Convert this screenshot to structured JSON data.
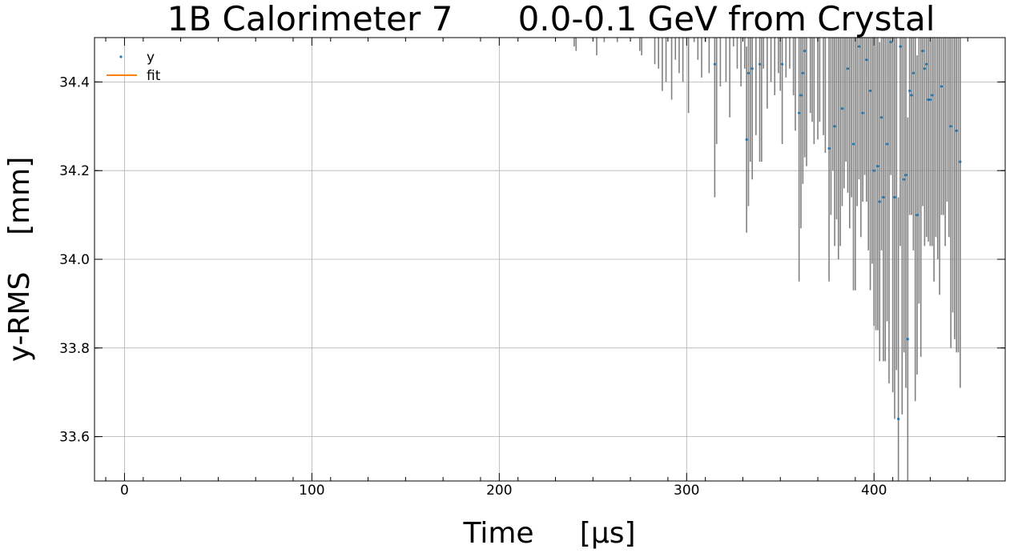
{
  "chart_data": {
    "type": "scatter",
    "title_left": "1B Calorimeter 7",
    "title_right": "0.0-0.1 GeV from Crystal",
    "xlabel": "Time     [μs]",
    "ylabel": "y-RMS    [mm]",
    "xlim": [
      -16,
      470
    ],
    "ylim": [
      33.5,
      34.5
    ],
    "xticks": [
      0,
      100,
      200,
      300,
      400
    ],
    "yticks": [
      33.6,
      33.8,
      34.0,
      34.2,
      34.4
    ],
    "grid": true,
    "legend_position": "top-left",
    "legend": [
      "y",
      "fit"
    ],
    "colors": {
      "points": "#1f77b4",
      "fit": "#ff7f0e",
      "errorbars": "#808080",
      "grid": "#b0b0b0"
    },
    "series": [
      {
        "name": "y",
        "points": [
          [
            315,
            34.44,
            0.3
          ],
          [
            332,
            34.27,
            0.21
          ],
          [
            333,
            34.42,
            0.3
          ],
          [
            335,
            34.43,
            0.25
          ],
          [
            339,
            34.44,
            0.22
          ],
          [
            351,
            34.44,
            0.18
          ],
          [
            360,
            34.33,
            0.38
          ],
          [
            361,
            34.37,
            0.3
          ],
          [
            362,
            34.42,
            0.25
          ],
          [
            363,
            34.47,
            0.24
          ],
          [
            376,
            34.25,
            0.3
          ],
          [
            379,
            34.3,
            0.27
          ],
          [
            383,
            34.34,
            0.22
          ],
          [
            386,
            34.43,
            0.28
          ],
          [
            389,
            34.26,
            0.33
          ],
          [
            392,
            34.48,
            0.3
          ],
          [
            394,
            34.33,
            0.2
          ],
          [
            396,
            34.45,
            0.32
          ],
          [
            398,
            34.38,
            0.45
          ],
          [
            400,
            34.2,
            0.35
          ],
          [
            402,
            34.21,
            0.37
          ],
          [
            403,
            34.13,
            0.36
          ],
          [
            404,
            34.32,
            0.3
          ],
          [
            405,
            34.14,
            0.37
          ],
          [
            407,
            34.26,
            0.4
          ],
          [
            409,
            34.49,
            0.3
          ],
          [
            411,
            34.14,
            0.5
          ],
          [
            413,
            33.64,
            0.5
          ],
          [
            414,
            34.48,
            0.45
          ],
          [
            416,
            34.18,
            0.39
          ],
          [
            417,
            34.19,
            0.48
          ],
          [
            418,
            33.82,
            0.5
          ],
          [
            419,
            34.38,
            0.28
          ],
          [
            420,
            34.37,
            0.27
          ],
          [
            421,
            34.42,
            0.4
          ],
          [
            423,
            34.1,
            0.36
          ],
          [
            426,
            34.47,
            0.35
          ],
          [
            427,
            34.43,
            0.4
          ],
          [
            428,
            34.44,
            0.39
          ],
          [
            429,
            34.36,
            0.32
          ],
          [
            430,
            34.36,
            0.33
          ],
          [
            431,
            34.37,
            0.34
          ],
          [
            436,
            34.39,
            0.29
          ],
          [
            441,
            34.3,
            0.5
          ],
          [
            444,
            34.29,
            0.5
          ],
          [
            446,
            34.22,
            0.51
          ]
        ],
        "bars_above_axis": [
          [
            240,
            34.48
          ],
          [
            241,
            34.47
          ],
          [
            252,
            34.46
          ],
          [
            256,
            34.49
          ],
          [
            263,
            34.49
          ],
          [
            275,
            34.47
          ],
          [
            276,
            34.46
          ],
          [
            283,
            34.44
          ],
          [
            285,
            34.43
          ],
          [
            287,
            34.38
          ],
          [
            289,
            34.4
          ],
          [
            292,
            34.36
          ],
          [
            294,
            34.45
          ],
          [
            296,
            34.42
          ],
          [
            298,
            34.4
          ],
          [
            301,
            34.33
          ],
          [
            304,
            34.49
          ],
          [
            306,
            34.45
          ],
          [
            308,
            34.41
          ],
          [
            310,
            34.49
          ],
          [
            312,
            34.42
          ],
          [
            316,
            34.26
          ],
          [
            318,
            34.39
          ],
          [
            321,
            34.4
          ],
          [
            323,
            34.32
          ],
          [
            325,
            34.48
          ],
          [
            327,
            34.43
          ],
          [
            329,
            34.39
          ],
          [
            331,
            34.43
          ],
          [
            334,
            34.22
          ],
          [
            337,
            34.28
          ],
          [
            340,
            34.22
          ],
          [
            341,
            34.43
          ],
          [
            343,
            34.34
          ],
          [
            345,
            34.4
          ],
          [
            347,
            34.37
          ],
          [
            349,
            34.42
          ],
          [
            350,
            34.38
          ],
          [
            353,
            34.41
          ],
          [
            355,
            34.43
          ],
          [
            357,
            34.37
          ],
          [
            358,
            34.29
          ],
          [
            364,
            34.21
          ],
          [
            366,
            34.33
          ],
          [
            367,
            34.31
          ],
          [
            368,
            34.26
          ],
          [
            370,
            34.27
          ],
          [
            371,
            34.31
          ],
          [
            373,
            34.28
          ],
          [
            374,
            34.24
          ],
          [
            377,
            34.1
          ],
          [
            378,
            34.2
          ],
          [
            380,
            34.09
          ],
          [
            381,
            34.0
          ],
          [
            382,
            34.03
          ],
          [
            384,
            34.16
          ],
          [
            385,
            34.22
          ],
          [
            387,
            34.07
          ],
          [
            388,
            34.14
          ],
          [
            390,
            33.93
          ],
          [
            391,
            34.12
          ],
          [
            393,
            34.05
          ],
          [
            395,
            34.19
          ],
          [
            397,
            34.02
          ],
          [
            399,
            33.99
          ],
          [
            401,
            33.84
          ],
          [
            406,
            33.77
          ],
          [
            408,
            33.72
          ],
          [
            410,
            33.7
          ],
          [
            412,
            33.75
          ],
          [
            415,
            33.65
          ],
          [
            422,
            33.68
          ],
          [
            424,
            33.9
          ],
          [
            425,
            33.78
          ],
          [
            432,
            33.95
          ],
          [
            433,
            34.05
          ],
          [
            434,
            34.0
          ],
          [
            435,
            33.92
          ],
          [
            437,
            34.1
          ],
          [
            438,
            34.03
          ],
          [
            439,
            34.13
          ],
          [
            440,
            34.05
          ],
          [
            442,
            33.88
          ],
          [
            443,
            33.82
          ],
          [
            445,
            33.79
          ]
        ]
      },
      {
        "name": "fit",
        "points": []
      }
    ]
  }
}
